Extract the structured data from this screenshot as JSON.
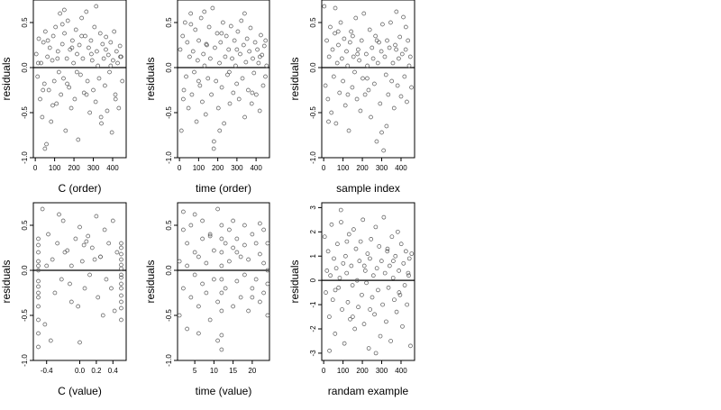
{
  "figure": {
    "background": "#ffffff",
    "point_color": "#555555",
    "axis_color": "#000000"
  },
  "chart_data": [
    {
      "type": "scatter",
      "xlabel": "C (order)",
      "ylabel": "residuals",
      "xlim": [
        -10,
        470
      ],
      "ylim": [
        -1.0,
        0.75
      ],
      "xticks": [
        {
          "v": 0,
          "label": "0"
        },
        {
          "v": 100,
          "label": "100"
        },
        {
          "v": 200,
          "label": "200"
        },
        {
          "v": 300,
          "label": "300"
        },
        {
          "v": 400,
          "label": "400"
        }
      ],
      "yticks": [
        {
          "v": -1.0,
          "label": "-1.0"
        },
        {
          "v": -0.5,
          "label": "-0.5"
        },
        {
          "v": 0.0,
          "label": "0.0"
        },
        {
          "v": 0.5,
          "label": "0.5"
        }
      ],
      "hline": 0,
      "x": [
        5,
        12,
        18,
        25,
        30,
        36,
        42,
        47,
        52,
        58,
        63,
        70,
        75,
        82,
        88,
        93,
        98,
        105,
        110,
        117,
        122,
        128,
        133,
        140,
        146,
        151,
        157,
        163,
        168,
        175,
        180,
        186,
        192,
        198,
        204,
        210,
        216,
        222,
        228,
        234,
        240,
        246,
        252,
        258,
        264,
        270,
        276,
        282,
        288,
        294,
        300,
        306,
        312,
        318,
        324,
        330,
        336,
        342,
        348,
        354,
        360,
        366,
        372,
        378,
        384,
        390,
        396,
        402,
        408,
        414,
        420,
        426,
        432,
        438,
        444,
        450,
        15,
        40,
        65,
        90,
        115,
        140,
        165,
        190,
        215,
        240,
        265,
        290,
        315,
        340,
        365,
        390,
        415,
        440,
        50,
        150
      ],
      "y": [
        0.15,
        -0.1,
        0.32,
        -0.35,
        0.05,
        -0.55,
        0.28,
        -0.18,
        0.4,
        -0.85,
        0.12,
        -0.25,
        0.22,
        -0.6,
        0.08,
        0.35,
        -0.15,
        0.45,
        -0.4,
        0.18,
        -0.05,
        0.6,
        -0.3,
        0.26,
        -0.12,
        0.38,
        -0.7,
        0.1,
        0.52,
        -0.22,
        0.2,
        -0.45,
        0.3,
        0.05,
        -0.35,
        0.42,
        0.15,
        -0.8,
        0.25,
        -0.08,
        0.55,
        0.1,
        -0.28,
        0.35,
        0.62,
        -0.15,
        0.22,
        -0.5,
        0.3,
        0.08,
        -0.25,
        0.45,
        -0.38,
        0.18,
        0.02,
        -0.12,
        0.38,
        -0.62,
        0.26,
        0.1,
        -0.2,
        0.34,
        -0.48,
        0.14,
        -0.05,
        0.28,
        -0.72,
        0.08,
        0.4,
        -0.3,
        0.18,
        0.05,
        -0.45,
        0.24,
        0.12,
        -0.15,
        0.05,
        -0.25,
        0.3,
        -0.42,
        0.1,
        0.48,
        -0.18,
        0.22,
        -0.05,
        0.35,
        -0.3,
        0.15,
        0.68,
        -0.55,
        0.2,
        0.02,
        -0.35,
        0.12,
        -0.9,
        0.64
      ]
    },
    {
      "type": "scatter",
      "xlabel": "time (order)",
      "ylabel": "residuals",
      "xlim": [
        -10,
        470
      ],
      "ylim": [
        -1.0,
        0.75
      ],
      "xticks": [
        {
          "v": 0,
          "label": "0"
        },
        {
          "v": 100,
          "label": "100"
        },
        {
          "v": 200,
          "label": "200"
        },
        {
          "v": 300,
          "label": "300"
        },
        {
          "v": 400,
          "label": "400"
        }
      ],
      "yticks": [
        {
          "v": -1.0,
          "label": "-1.0"
        },
        {
          "v": -0.5,
          "label": "-0.5"
        },
        {
          "v": 0.0,
          "label": "0.0"
        },
        {
          "v": 0.5,
          "label": "0.5"
        }
      ],
      "hline": 0,
      "x": [
        4,
        10,
        17,
        23,
        29,
        35,
        41,
        47,
        53,
        59,
        65,
        71,
        77,
        83,
        89,
        95,
        101,
        107,
        113,
        119,
        125,
        131,
        137,
        143,
        149,
        155,
        161,
        167,
        173,
        179,
        185,
        191,
        197,
        203,
        209,
        215,
        221,
        227,
        233,
        239,
        245,
        251,
        257,
        263,
        269,
        275,
        281,
        287,
        293,
        299,
        305,
        311,
        317,
        323,
        329,
        335,
        341,
        347,
        353,
        359,
        365,
        371,
        377,
        383,
        389,
        395,
        401,
        407,
        413,
        419,
        425,
        431,
        437,
        443,
        449,
        455,
        20,
        60,
        100,
        140,
        180,
        220,
        260,
        300,
        340,
        380,
        420,
        450,
        130,
        210
      ],
      "y": [
        0.2,
        -0.7,
        0.35,
        -0.25,
        0.5,
        -0.1,
        0.28,
        -0.45,
        0.12,
        0.6,
        -0.3,
        0.18,
        -0.05,
        0.42,
        -0.6,
        0.08,
        0.3,
        -0.2,
        0.55,
        -0.38,
        0.15,
        0.02,
        -0.52,
        0.25,
        -0.12,
        0.45,
        0.1,
        -0.3,
        0.66,
        -0.9,
        0.22,
        -0.15,
        0.38,
        -0.45,
        0.05,
        0.28,
        -0.22,
        0.5,
        -0.62,
        0.12,
        0.35,
        -0.08,
        0.2,
        -0.4,
        0.46,
        0.1,
        -0.28,
        0.3,
        0.02,
        -0.18,
        0.4,
        -0.35,
        0.15,
        0.52,
        -0.12,
        0.25,
        -0.55,
        0.06,
        0.32,
        -0.25,
        0.18,
        0.44,
        -0.4,
        0.1,
        -0.06,
        0.28,
        -0.3,
        0.2,
        0.05,
        -0.48,
        0.36,
        0.14,
        -0.2,
        0.24,
        -0.1,
        0.02,
        -0.35,
        0.48,
        -0.15,
        0.26,
        -0.82,
        0.38,
        -0.05,
        0.2,
        0.6,
        -0.28,
        0.12,
        0.3,
        0.62,
        -0.7
      ]
    },
    {
      "type": "scatter",
      "xlabel": "sample index",
      "ylabel": "residuals",
      "xlim": [
        -10,
        470
      ],
      "ylim": [
        -1.0,
        0.75
      ],
      "xticks": [
        {
          "v": 0,
          "label": "0"
        },
        {
          "v": 100,
          "label": "100"
        },
        {
          "v": 200,
          "label": "200"
        },
        {
          "v": 300,
          "label": "300"
        },
        {
          "v": 400,
          "label": "400"
        }
      ],
      "yticks": [
        {
          "v": -1.0,
          "label": "-1.0"
        },
        {
          "v": -0.5,
          "label": "-0.5"
        },
        {
          "v": 0.0,
          "label": "0.0"
        },
        {
          "v": 0.5,
          "label": "0.5"
        }
      ],
      "hline": 0,
      "x": [
        3,
        9,
        16,
        22,
        28,
        34,
        40,
        46,
        52,
        58,
        64,
        70,
        76,
        82,
        88,
        94,
        100,
        106,
        112,
        118,
        124,
        130,
        136,
        142,
        148,
        154,
        160,
        166,
        172,
        178,
        184,
        190,
        196,
        202,
        208,
        214,
        220,
        226,
        232,
        238,
        244,
        250,
        256,
        262,
        268,
        274,
        280,
        286,
        292,
        298,
        304,
        310,
        316,
        322,
        328,
        334,
        340,
        346,
        352,
        358,
        364,
        370,
        376,
        382,
        388,
        394,
        400,
        406,
        412,
        418,
        424,
        430,
        436,
        442,
        448,
        454,
        25,
        75,
        125,
        175,
        225,
        275,
        325,
        375,
        425,
        300,
        150,
        60
      ],
      "y": [
        0.68,
        -0.2,
        0.3,
        -0.35,
        0.12,
        0.45,
        -0.5,
        0.2,
        -0.1,
        0.38,
        -0.62,
        0.05,
        0.25,
        -0.28,
        0.5,
        0.1,
        -0.15,
        0.32,
        -0.42,
        0.18,
        0.02,
        -0.7,
        0.28,
        0.4,
        -0.22,
        0.12,
        -0.05,
        0.55,
        -0.35,
        0.2,
        0.08,
        -0.48,
        0.3,
        -0.12,
        0.6,
        -0.3,
        0.15,
        0.02,
        -0.25,
        0.42,
        -0.55,
        0.22,
        0.1,
        -0.18,
        0.35,
        -0.82,
        0.05,
        0.28,
        -0.4,
        0.18,
        0.48,
        -0.92,
        0.12,
        -0.08,
        0.3,
        -0.3,
        0.22,
        0.5,
        -0.15,
        0.05,
        -0.45,
        0.25,
        0.62,
        -0.2,
        0.1,
        0.34,
        -0.32,
        0.15,
        0.56,
        -0.1,
        0.2,
        -0.38,
        0.3,
        0.02,
        0.12,
        -0.22,
        -0.6,
        0.4,
        -0.3,
        0.15,
        -0.12,
        0.3,
        -0.65,
        0.2,
        0.45,
        -0.72,
        0.35,
        0.66
      ]
    },
    {
      "type": "scatter",
      "xlabel": "C (value)",
      "ylabel": "residuals",
      "xlim": [
        -0.56,
        0.56
      ],
      "ylim": [
        -1.0,
        0.75
      ],
      "xticks": [
        {
          "v": -0.4,
          "label": "-0.4"
        },
        {
          "v": 0.0,
          "label": "0.0"
        },
        {
          "v": 0.2,
          "label": "0.2"
        },
        {
          "v": 0.4,
          "label": "0.4"
        }
      ],
      "yticks": [
        {
          "v": -1.0,
          "label": "-1.0"
        },
        {
          "v": -0.5,
          "label": "-0.5"
        },
        {
          "v": 0.0,
          "label": "0.0"
        },
        {
          "v": 0.5,
          "label": "0.5"
        }
      ],
      "hline": 0,
      "x": [
        -0.5,
        -0.5,
        -0.5,
        -0.5,
        -0.5,
        -0.5,
        -0.5,
        -0.5,
        -0.5,
        -0.5,
        -0.5,
        -0.5,
        -0.5,
        -0.5,
        0.5,
        0.5,
        0.5,
        0.5,
        0.5,
        0.5,
        0.5,
        0.5,
        0.5,
        0.5,
        0.5,
        0.5,
        0.5,
        0.5,
        -0.45,
        -0.42,
        -0.38,
        -0.33,
        -0.3,
        -0.27,
        -0.22,
        -0.2,
        -0.15,
        -0.12,
        -0.1,
        -0.05,
        -0.02,
        0.0,
        0.03,
        0.06,
        0.1,
        0.12,
        0.15,
        0.2,
        0.22,
        0.25,
        0.3,
        0.32,
        0.35,
        0.4,
        0.42,
        0.45,
        -0.35,
        -0.25,
        -0.1,
        0.05,
        0.18,
        0.28,
        0.38,
        -0.4,
        -0.18,
        0.0,
        0.08,
        0.25
      ],
      "y": [
        0.35,
        0.2,
        0.1,
        0.0,
        -0.12,
        -0.25,
        -0.4,
        -0.55,
        -0.7,
        -0.85,
        0.28,
        -0.18,
        0.05,
        -0.3,
        0.3,
        0.18,
        0.06,
        -0.05,
        -0.15,
        -0.28,
        -0.42,
        -0.55,
        0.25,
        0.12,
        -0.08,
        -0.35,
        0.02,
        -0.2,
        0.68,
        -0.6,
        0.4,
        0.12,
        -0.25,
        0.3,
        -0.1,
        0.55,
        0.22,
        -0.15,
        0.05,
        0.35,
        -0.4,
        0.48,
        0.1,
        -0.2,
        0.38,
        -0.05,
        0.25,
        0.6,
        -0.3,
        0.15,
        0.45,
        -0.1,
        0.3,
        0.55,
        -0.45,
        0.2,
        -0.78,
        0.62,
        -0.35,
        0.28,
        0.12,
        -0.5,
        -0.2,
        0.05,
        0.2,
        -0.8,
        0.32,
        0.15
      ]
    },
    {
      "type": "scatter",
      "xlabel": "time (value)",
      "ylabel": "residuals",
      "xlim": [
        0.5,
        24.5
      ],
      "ylim": [
        -1.0,
        0.75
      ],
      "xticks": [
        {
          "v": 5,
          "label": "5"
        },
        {
          "v": 10,
          "label": "10"
        },
        {
          "v": 15,
          "label": "15"
        },
        {
          "v": 20,
          "label": "20"
        }
      ],
      "yticks": [
        {
          "v": -1.0,
          "label": "-1.0"
        },
        {
          "v": -0.5,
          "label": "-0.5"
        },
        {
          "v": 0.0,
          "label": "0.0"
        },
        {
          "v": 0.5,
          "label": "0.5"
        }
      ],
      "hline": 0,
      "x": [
        1,
        1,
        2,
        2,
        3,
        3,
        3,
        4,
        4,
        5,
        5,
        5,
        6,
        6,
        7,
        7,
        7,
        8,
        8,
        9,
        9,
        10,
        10,
        11,
        11,
        12,
        12,
        12,
        12,
        12,
        12,
        12,
        12,
        13,
        13,
        14,
        14,
        15,
        15,
        15,
        16,
        16,
        17,
        17,
        18,
        18,
        18,
        19,
        19,
        20,
        20,
        21,
        21,
        22,
        22,
        22,
        23,
        23,
        24,
        24,
        24,
        24,
        2,
        6,
        9,
        12,
        16,
        20,
        23,
        11
      ],
      "y": [
        0.1,
        -0.5,
        0.45,
        -0.2,
        0.3,
        -0.65,
        0.05,
        0.5,
        -0.3,
        0.2,
        -0.05,
        0.62,
        -0.4,
        0.15,
        0.35,
        -0.15,
        0.55,
        -0.25,
        0.08,
        0.4,
        -0.55,
        0.22,
        -0.1,
        0.68,
        -0.35,
        0.5,
        0.35,
        0.2,
        0.05,
        -0.1,
        -0.25,
        -0.45,
        -0.72,
        0.3,
        -0.2,
        0.45,
        0.1,
        -0.4,
        0.25,
        0.55,
        -0.12,
        0.35,
        0.15,
        -0.3,
        0.5,
        -0.05,
        0.28,
        -0.45,
        0.12,
        0.4,
        -0.2,
        0.3,
        -0.1,
        0.18,
        -0.35,
        0.52,
        0.08,
        -0.25,
        0.3,
        0.0,
        -0.15,
        -0.5,
        0.65,
        -0.7,
        0.38,
        -0.88,
        0.2,
        -0.3,
        0.45,
        -0.78
      ]
    },
    {
      "type": "scatter",
      "xlabel": "randam example",
      "ylabel": "residuals",
      "xlim": [
        -10,
        470
      ],
      "ylim": [
        -3.3,
        3.2
      ],
      "xticks": [
        {
          "v": 0,
          "label": "0"
        },
        {
          "v": 100,
          "label": "100"
        },
        {
          "v": 200,
          "label": "200"
        },
        {
          "v": 300,
          "label": "300"
        },
        {
          "v": 400,
          "label": "400"
        }
      ],
      "yticks": [
        {
          "v": -3,
          "label": "-3"
        },
        {
          "v": -2,
          "label": "-2"
        },
        {
          "v": -1,
          "label": "-1"
        },
        {
          "v": 0,
          "label": "0"
        },
        {
          "v": 1,
          "label": "1"
        },
        {
          "v": 2,
          "label": "2"
        },
        {
          "v": 3,
          "label": "3"
        }
      ],
      "hline": 0,
      "x": [
        5,
        11,
        17,
        23,
        29,
        35,
        41,
        47,
        53,
        59,
        65,
        71,
        77,
        83,
        89,
        95,
        101,
        107,
        113,
        119,
        125,
        131,
        137,
        143,
        149,
        155,
        161,
        167,
        173,
        179,
        185,
        191,
        197,
        203,
        209,
        215,
        221,
        227,
        233,
        239,
        245,
        251,
        257,
        263,
        269,
        275,
        281,
        287,
        293,
        299,
        305,
        311,
        317,
        323,
        329,
        335,
        341,
        347,
        353,
        359,
        365,
        371,
        377,
        383,
        389,
        395,
        401,
        407,
        413,
        419,
        425,
        431,
        437,
        443,
        449,
        455,
        30,
        90,
        150,
        210,
        270,
        330,
        390,
        440,
        120,
        240,
        360,
        60
      ],
      "y": [
        1.8,
        -0.5,
        0.4,
        1.2,
        -1.5,
        0.2,
        2.3,
        -0.8,
        0.9,
        -2.2,
        0.5,
        1.5,
        -0.3,
        0.1,
        2.9,
        -1.2,
        0.7,
        -2.6,
        1.0,
        0.3,
        -0.9,
        1.9,
        -1.6,
        0.6,
        -0.2,
        2.1,
        -2.0,
        1.3,
        0.0,
        -1.1,
        0.8,
        1.6,
        -0.6,
        2.5,
        -1.8,
        0.4,
        -0.1,
        1.1,
        -2.8,
        0.9,
        1.7,
        -0.7,
        0.2,
        -1.4,
        2.2,
        0.5,
        -0.4,
        1.4,
        -2.3,
        0.8,
        -1.0,
        2.6,
        0.3,
        -1.7,
        1.2,
        -0.3,
        0.6,
        -2.5,
        1.8,
        0.1,
        -0.8,
        1.0,
        -1.3,
        2.0,
        0.4,
        -0.6,
        1.5,
        -1.9,
        0.7,
        -0.2,
        1.2,
        -1.0,
        0.3,
        0.9,
        -2.7,
        1.1,
        -2.9,
        2.4,
        -1.5,
        0.6,
        -3.0,
        1.3,
        -0.5,
        0.2,
        1.6,
        -1.2,
        0.8,
        -0.4
      ]
    }
  ]
}
